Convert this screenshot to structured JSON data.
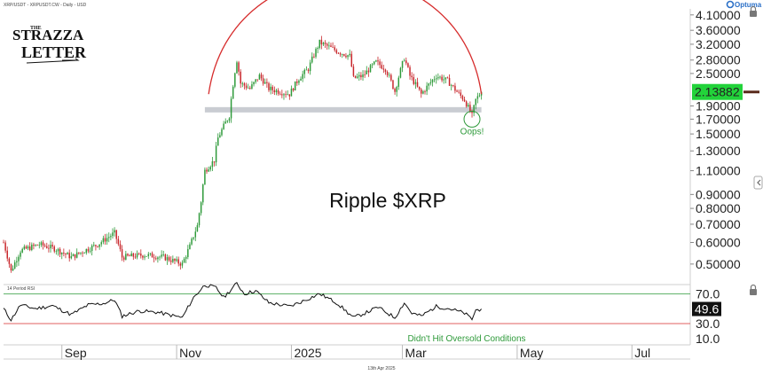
{
  "header": {
    "symbol_line": "XRP/USDT - XRPUSDT.CW - Daily - USD",
    "brand": "Optuma"
  },
  "logo": {
    "line1": "THE",
    "line2": "STRAZZA",
    "line3": "LETTER"
  },
  "rsi_label": "14 Period RSI",
  "footer_date": "13th Apr 2025",
  "colors": {
    "up": "#2e9a3a",
    "down": "#c8262b",
    "arc": "#d62b2b",
    "support_band": "#c9ccd2",
    "price_box": "#22d33a",
    "rsi_line": "#111111",
    "rsi_upper": "#2e9a3a",
    "rsi_lower": "#d62b2b"
  },
  "chart_data": [
    {
      "type": "candlestick",
      "title": "Ripple $XRP",
      "scale": "log",
      "ylim": [
        0.43,
        4.25
      ],
      "y_ticks": [
        "4.10000",
        "3.60000",
        "3.20000",
        "2.80000",
        "2.50000",
        "2.13882",
        "1.90000",
        "1.70000",
        "1.50000",
        "1.30000",
        "1.10000",
        "0.90000",
        "0.80000",
        "0.70000",
        "0.60000",
        "0.50000"
      ],
      "x_ticks": [
        "Sep",
        "Nov",
        "2025",
        "Mar",
        "May",
        "Jul"
      ],
      "x_tick_dates": [
        "2024-09-01",
        "2024-11-01",
        "2025-01-01",
        "2025-03-01",
        "2025-05-01",
        "2025-07-01"
      ],
      "x_range": [
        "2024-08-01",
        "2025-08-01"
      ],
      "last_price": "2.13882",
      "support_level": 1.84,
      "support_range": [
        "2024-11-16",
        "2025-04-12"
      ],
      "rounded_top": {
        "start": "2024-11-18",
        "peak": "2025-01-28",
        "end": "2025-04-12",
        "start_value": 2.1,
        "peak_value": 4.05,
        "end_value": 2.1
      },
      "annotations": [
        {
          "text": "Oops!",
          "x": "2025-04-07",
          "y": 1.55,
          "marker": "circle",
          "marker_y": 1.7
        }
      ],
      "key_prices": [
        {
          "date": "2024-08-01",
          "close": 0.6
        },
        {
          "date": "2024-08-05",
          "close": 0.47
        },
        {
          "date": "2024-08-10",
          "close": 0.56
        },
        {
          "date": "2024-08-20",
          "close": 0.59
        },
        {
          "date": "2024-08-28",
          "close": 0.57
        },
        {
          "date": "2024-09-06",
          "close": 0.53
        },
        {
          "date": "2024-09-20",
          "close": 0.59
        },
        {
          "date": "2024-09-29",
          "close": 0.65
        },
        {
          "date": "2024-10-03",
          "close": 0.53
        },
        {
          "date": "2024-10-15",
          "close": 0.54
        },
        {
          "date": "2024-10-25",
          "close": 0.53
        },
        {
          "date": "2024-11-04",
          "close": 0.5
        },
        {
          "date": "2024-11-08",
          "close": 0.58
        },
        {
          "date": "2024-11-12",
          "close": 0.69
        },
        {
          "date": "2024-11-14",
          "close": 0.85
        },
        {
          "date": "2024-11-16",
          "close": 1.1
        },
        {
          "date": "2024-11-21",
          "close": 1.2
        },
        {
          "date": "2024-11-23",
          "close": 1.45
        },
        {
          "date": "2024-11-29",
          "close": 1.75
        },
        {
          "date": "2024-12-02",
          "close": 2.55
        },
        {
          "date": "2024-12-03",
          "close": 2.8
        },
        {
          "date": "2024-12-05",
          "close": 2.3
        },
        {
          "date": "2024-12-10",
          "close": 2.2
        },
        {
          "date": "2024-12-15",
          "close": 2.45
        },
        {
          "date": "2024-12-20",
          "close": 2.2
        },
        {
          "date": "2024-12-25",
          "close": 2.15
        },
        {
          "date": "2024-12-31",
          "close": 2.1
        },
        {
          "date": "2025-01-05",
          "close": 2.4
        },
        {
          "date": "2025-01-10",
          "close": 2.6
        },
        {
          "date": "2025-01-16",
          "close": 3.25
        },
        {
          "date": "2025-01-20",
          "close": 3.15
        },
        {
          "date": "2025-01-26",
          "close": 3.0
        },
        {
          "date": "2025-02-01",
          "close": 2.9
        },
        {
          "date": "2025-02-03",
          "close": 2.4
        },
        {
          "date": "2025-02-08",
          "close": 2.45
        },
        {
          "date": "2025-02-15",
          "close": 2.75
        },
        {
          "date": "2025-02-20",
          "close": 2.6
        },
        {
          "date": "2025-02-25",
          "close": 2.15
        },
        {
          "date": "2025-03-02",
          "close": 2.85
        },
        {
          "date": "2025-03-05",
          "close": 2.45
        },
        {
          "date": "2025-03-11",
          "close": 2.1
        },
        {
          "date": "2025-03-19",
          "close": 2.45
        },
        {
          "date": "2025-03-25",
          "close": 2.35
        },
        {
          "date": "2025-03-31",
          "close": 2.1
        },
        {
          "date": "2025-04-03",
          "close": 2.0
        },
        {
          "date": "2025-04-07",
          "close": 1.75
        },
        {
          "date": "2025-04-09",
          "close": 2.0
        },
        {
          "date": "2025-04-12",
          "close": 2.13882
        }
      ]
    },
    {
      "type": "line",
      "title": "14 Period RSI",
      "ylim": [
        5,
        80
      ],
      "y_ticks": [
        "70.0",
        "49.6",
        "30.0",
        "10.0"
      ],
      "upper_level": 70,
      "lower_level": 30,
      "last_value": "49.6",
      "annotations": [
        {
          "text": "Didn't Hit Oversold Conditions"
        }
      ],
      "key_values": [
        {
          "date": "2024-08-01",
          "value": 50
        },
        {
          "date": "2024-08-05",
          "value": 35
        },
        {
          "date": "2024-08-10",
          "value": 55
        },
        {
          "date": "2024-08-18",
          "value": 50
        },
        {
          "date": "2024-08-27",
          "value": 54
        },
        {
          "date": "2024-09-06",
          "value": 42
        },
        {
          "date": "2024-09-15",
          "value": 55
        },
        {
          "date": "2024-09-23",
          "value": 57
        },
        {
          "date": "2024-09-29",
          "value": 62
        },
        {
          "date": "2024-10-03",
          "value": 40
        },
        {
          "date": "2024-10-12",
          "value": 47
        },
        {
          "date": "2024-10-22",
          "value": 45
        },
        {
          "date": "2024-11-04",
          "value": 38
        },
        {
          "date": "2024-11-10",
          "value": 65
        },
        {
          "date": "2024-11-16",
          "value": 82
        },
        {
          "date": "2024-11-22",
          "value": 78
        },
        {
          "date": "2024-11-26",
          "value": 65
        },
        {
          "date": "2024-12-03",
          "value": 84
        },
        {
          "date": "2024-12-07",
          "value": 70
        },
        {
          "date": "2024-12-13",
          "value": 74
        },
        {
          "date": "2024-12-20",
          "value": 58
        },
        {
          "date": "2024-12-31",
          "value": 53
        },
        {
          "date": "2025-01-07",
          "value": 60
        },
        {
          "date": "2025-01-16",
          "value": 70
        },
        {
          "date": "2025-01-25",
          "value": 58
        },
        {
          "date": "2025-02-03",
          "value": 38
        },
        {
          "date": "2025-02-10",
          "value": 45
        },
        {
          "date": "2025-02-16",
          "value": 52
        },
        {
          "date": "2025-02-25",
          "value": 38
        },
        {
          "date": "2025-03-02",
          "value": 58
        },
        {
          "date": "2025-03-06",
          "value": 44
        },
        {
          "date": "2025-03-11",
          "value": 40
        },
        {
          "date": "2025-03-19",
          "value": 53
        },
        {
          "date": "2025-03-26",
          "value": 50
        },
        {
          "date": "2025-04-03",
          "value": 44
        },
        {
          "date": "2025-04-07",
          "value": 36
        },
        {
          "date": "2025-04-09",
          "value": 48
        },
        {
          "date": "2025-04-12",
          "value": 49.6
        }
      ]
    }
  ]
}
